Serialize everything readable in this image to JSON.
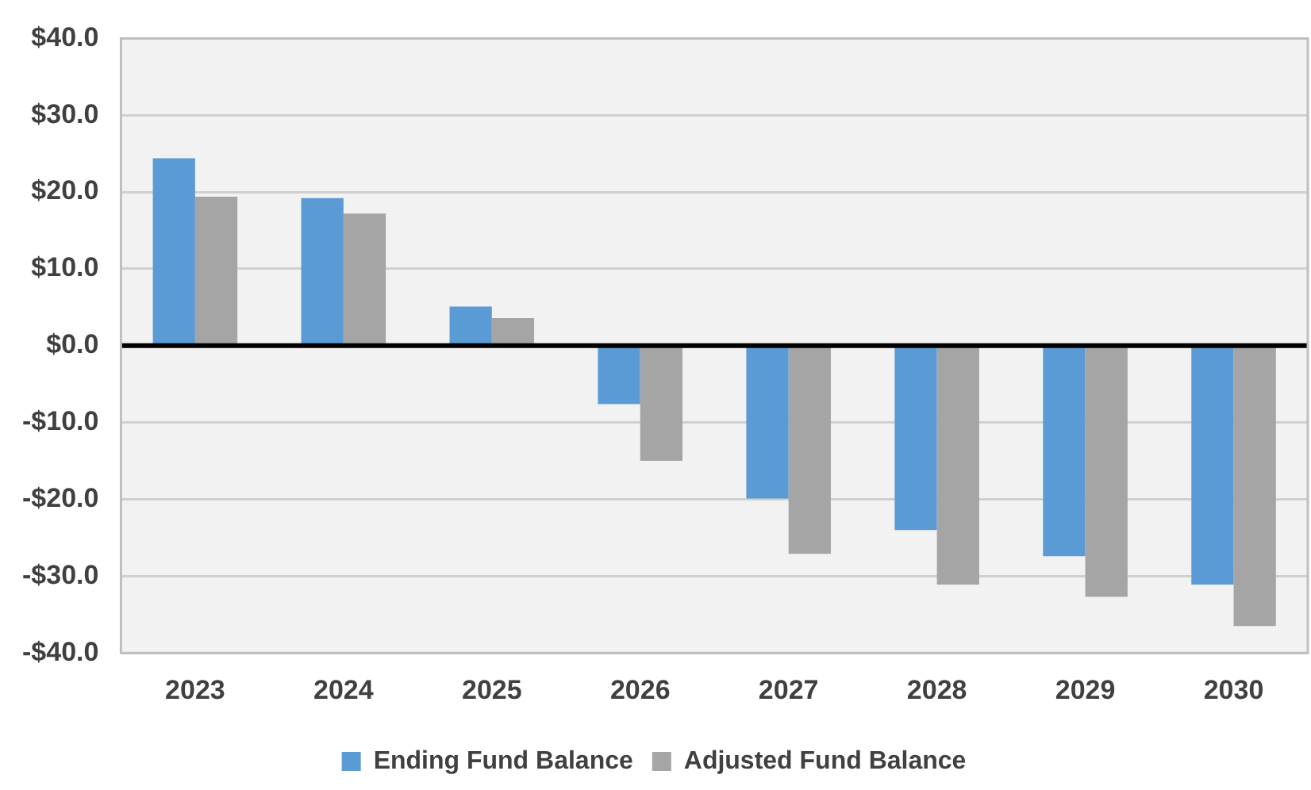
{
  "chart_data": {
    "type": "bar",
    "categories": [
      "2023",
      "2024",
      "2025",
      "2026",
      "2027",
      "2028",
      "2029",
      "2030"
    ],
    "series": [
      {
        "name": "Ending Fund Balance",
        "color": "#5b9bd5",
        "values": [
          24.4,
          19.2,
          5.1,
          -7.6,
          -19.9,
          -24.0,
          -27.4,
          -31.1
        ]
      },
      {
        "name": "Adjusted Fund Balance",
        "color": "#a5a5a5",
        "values": [
          19.4,
          17.2,
          3.6,
          -15.0,
          -27.1,
          -31.1,
          -32.7,
          -36.5
        ]
      }
    ],
    "ylim": [
      -40,
      40
    ],
    "yticks": [
      {
        "value": -40,
        "label": "-$40.0"
      },
      {
        "value": -30,
        "label": "-$30.0"
      },
      {
        "value": -20,
        "label": "-$20.0"
      },
      {
        "value": -10,
        "label": "-$10.0"
      },
      {
        "value": 0,
        "label": "$0.0"
      },
      {
        "value": 10,
        "label": "$10.0"
      },
      {
        "value": 20,
        "label": "$20.0"
      },
      {
        "value": 30,
        "label": "$30.0"
      },
      {
        "value": 40,
        "label": "$40.0"
      }
    ],
    "grid": "y",
    "legend": "bottom"
  }
}
